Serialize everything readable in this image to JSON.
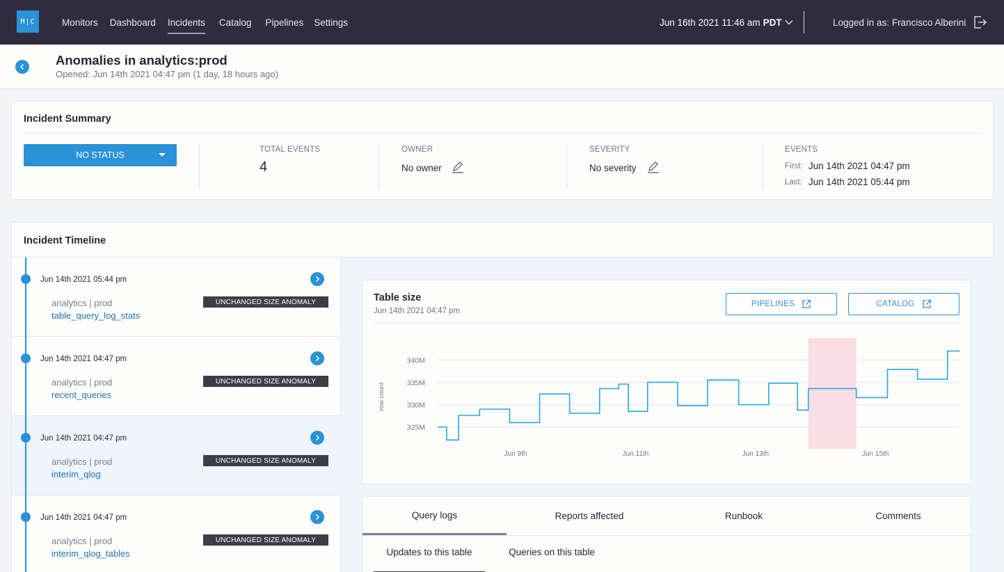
{
  "app": {
    "logo_text": "M|C"
  },
  "nav": {
    "items": [
      {
        "label": "Monitors"
      },
      {
        "label": "Dashboard"
      },
      {
        "label": "Incidents"
      },
      {
        "label": "Catalog"
      },
      {
        "label": "Pipelines"
      },
      {
        "label": "Settings"
      }
    ],
    "active": "Incidents",
    "date": "Jun 16th 2021 11:46 am",
    "timezone": "PDT",
    "user": "Logged in as: Francisco Alberini"
  },
  "page": {
    "title": "Anomalies in analytics:prod",
    "subtitle": "Opened: Jun 14th 2021 04:47 pm (1 day, 18 hours ago)"
  },
  "summary": {
    "title": "Incident Summary",
    "status": "NO STATUS",
    "total_events_label": "TOTAL EVENTS",
    "total_events": "4",
    "owner_label": "OWNER",
    "owner": "No owner",
    "severity_label": "SEVERITY",
    "severity": "No severity",
    "events_label": "EVENTS",
    "first_key": "First:",
    "first": "Jun 14th 2021 04:47 pm",
    "last_key": "Last:",
    "last": "Jun 14th 2021 05:44 pm"
  },
  "timeline": {
    "title": "Incident Timeline",
    "items": [
      {
        "time": "Jun 14th 2021 05:44 pm",
        "path": "analytics | prod",
        "table": "table_query_log_stats",
        "badge": "UNCHANGED SIZE ANOMALY"
      },
      {
        "time": "Jun 14th 2021 04:47 pm",
        "path": "analytics | prod",
        "table": "recent_queries",
        "badge": "UNCHANGED SIZE ANOMALY"
      },
      {
        "time": "Jun 14th 2021 04:47 pm",
        "path": "analytics | prod",
        "table": "interim_qlog",
        "badge": "UNCHANGED SIZE ANOMALY"
      },
      {
        "time": "Jun 14th 2021 04:47 pm",
        "path": "analytics | prod",
        "table": "interim_qlog_tables",
        "badge": "UNCHANGED SIZE ANOMALY"
      }
    ],
    "selected_index": 2
  },
  "chart_panel": {
    "title": "Table size",
    "subtitle": "Jun 14th 2021 04:47 pm",
    "pipelines_button": "PIPELINES",
    "catalog_button": "CATALOG"
  },
  "chart_data": {
    "type": "line",
    "step": true,
    "title": "Table size",
    "ylabel": "row count",
    "xlabel": "",
    "y_ticks": [
      "325M",
      "330M",
      "335M",
      "340M"
    ],
    "x_ticks": [
      "Jun 9th",
      "Jun 11th",
      "Jun 13th",
      "Jun 15th"
    ],
    "x_tick_days": [
      9,
      11,
      13,
      15
    ],
    "xlim": [
      7.7,
      16.4
    ],
    "ylim": [
      322,
      343
    ],
    "series": [
      {
        "x": [
          7.7,
          7.85,
          8.05,
          8.4,
          8.9,
          9.4,
          9.9,
          10.4,
          10.72,
          10.88,
          11.2,
          11.7,
          12.2,
          12.72,
          13.22,
          13.7,
          13.88,
          14.68,
          15.2,
          15.7,
          16.2,
          16.4
        ],
        "values": [
          325.0,
          322.1,
          327.6,
          329.0,
          326.0,
          332.4,
          328.1,
          333.6,
          334.6,
          328.5,
          335.0,
          329.8,
          335.5,
          330.0,
          334.8,
          328.8,
          333.6,
          331.6,
          337.9,
          335.7,
          342.0,
          342.0
        ]
      }
    ],
    "highlight": {
      "x0": 13.88,
      "x1": 14.68
    },
    "colors": {
      "line": "#2aa8e0",
      "highlight": "#fbdde6",
      "grid": "#e1e3e8"
    }
  },
  "tabs": {
    "items": [
      {
        "label": "Query logs"
      },
      {
        "label": "Reports affected"
      },
      {
        "label": "Runbook"
      },
      {
        "label": "Comments"
      }
    ],
    "active": "Query logs",
    "subtabs": [
      {
        "label": "Updates to this table"
      },
      {
        "label": "Queries on this table"
      }
    ],
    "active_subtab": "Updates to this table"
  },
  "colors": {
    "nav_bg": "#2e2c3d",
    "accent": "#2a92d6",
    "badge_bg": "#3b3e48",
    "link": "#1f74b4"
  }
}
